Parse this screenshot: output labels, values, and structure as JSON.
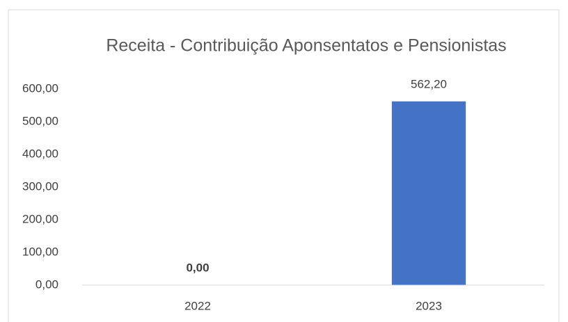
{
  "chart_data": {
    "type": "bar",
    "title": "Receita - Contribuição Aponsentatos e Pensionistas",
    "categories": [
      "2022",
      "2023"
    ],
    "values": [
      0,
      562.2
    ],
    "value_labels": [
      "0,00",
      "562,20"
    ],
    "color": "#4472c4",
    "ylim": [
      0,
      600
    ],
    "yticks": [
      {
        "value": 0,
        "label": "0,00"
      },
      {
        "value": 100,
        "label": "100,00"
      },
      {
        "value": 200,
        "label": "200,00"
      },
      {
        "value": 300,
        "label": "300,00"
      },
      {
        "value": 400,
        "label": "400,00"
      },
      {
        "value": 500,
        "label": "500,00"
      },
      {
        "value": 600,
        "label": "600,00"
      }
    ],
    "grid": false
  }
}
